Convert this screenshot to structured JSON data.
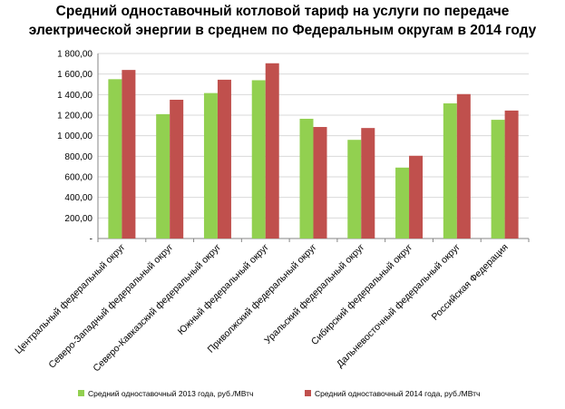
{
  "chart_data": {
    "type": "bar",
    "title_lines": [
      "Средний одноставочный котловой тариф на услуги по передаче",
      "электрической энергии в среднем по Федеральным округам в 2014 году"
    ],
    "categories": [
      "Центральный федеральный округ",
      "Северо-Западный федеральный округ",
      "Северо-Кавказский федеральный округ",
      "Южный федеральный округ",
      "Приволжский федеральный округ",
      "Уральский федеральный округ",
      "Сибирский федеральный округ",
      "Дальневосточный федеральный округ",
      "Российская Федерация"
    ],
    "series": [
      {
        "name": "Средний одноставочный 2013 года, руб./МВтч",
        "color": "#92d050",
        "values": [
          1550,
          1210,
          1415,
          1540,
          1165,
          960,
          690,
          1315,
          1155
        ]
      },
      {
        "name": "Средний одноставочный 2014 года, руб./МВтч",
        "color": "#c0504d",
        "values": [
          1640,
          1350,
          1545,
          1705,
          1085,
          1075,
          805,
          1405,
          1245
        ]
      }
    ],
    "ylim": [
      0,
      1800
    ],
    "yticks": [
      "-",
      "200,00",
      "400,00",
      "600,00",
      "800,00",
      "1 000,00",
      "1 200,00",
      "1 400,00",
      "1 600,00",
      "1 800,00"
    ],
    "grid": true,
    "legend_position": "bottom"
  }
}
